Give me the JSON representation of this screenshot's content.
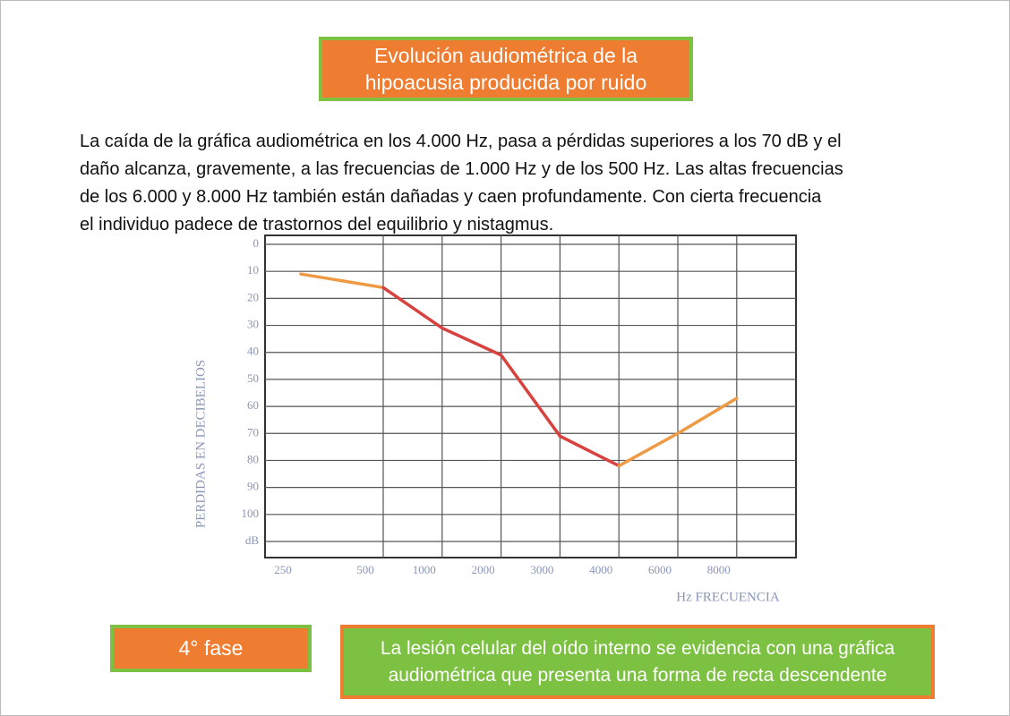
{
  "header": {
    "title_lines": [
      "Evolución audiométrica de la",
      "hipoacusia producida por ruido"
    ]
  },
  "body": {
    "paragraph_lines": [
      "La caída de la gráfica audiométrica en los 4.000 Hz, pasa a pérdidas superiores a los 70 dB y el",
      "daño alcanza, gravemente, a las frecuencias de 1.000 Hz y de los 500 Hz. Las altas frecuencias",
      "de los 6.000 y 8.000 Hz también están dañadas y caen profundamente. Con cierta frecuencia",
      "el individuo padece de trastornos del equilibrio y nistagmus."
    ]
  },
  "chart_data": {
    "type": "line",
    "x_label": "Hz  FRECUENCIA",
    "y_label": "PERDIDAS EN DECIBELIOS",
    "categories": [
      "250",
      "500",
      "1000",
      "2000",
      "3000",
      "4000",
      "6000",
      "8000"
    ],
    "values": [
      11,
      16,
      31,
      41,
      71,
      82,
      70,
      57
    ],
    "segment_colors": [
      "#ee9a45",
      "#d8423e",
      "#d8423e",
      "#d8423e",
      "#d8423e",
      "#ee9a45",
      "#ee9a45"
    ],
    "ylim": [
      0,
      110
    ],
    "y_inverted": true,
    "yticks": [
      0,
      10,
      20,
      30,
      40,
      50,
      60,
      70,
      80,
      90,
      100,
      {
        "value": 110,
        "label": "dB"
      }
    ],
    "grid": true
  },
  "footer": {
    "phase": "4° fase",
    "note_lines": [
      "La lesión celular del oído interno se evidencia con una gráfica",
      "audiométrica que presenta una forma de recta descendente"
    ]
  }
}
